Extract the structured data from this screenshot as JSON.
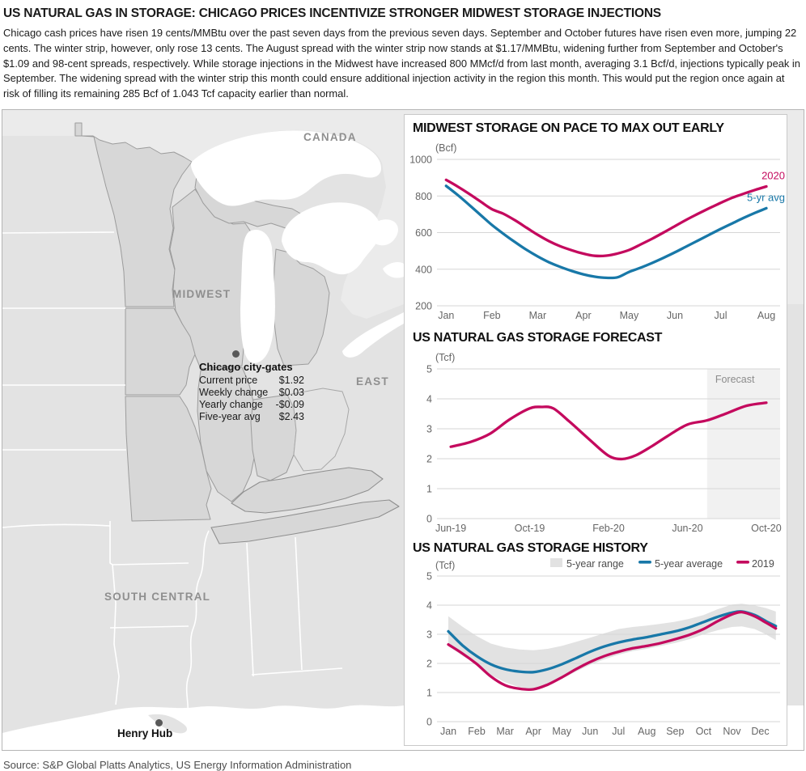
{
  "page": {
    "title": "US NATURAL GAS IN STORAGE: CHICAGO PRICES INCENTIVIZE STRONGER MIDWEST STORAGE INJECTIONS",
    "paragraph": "Chicago cash prices have risen 19 cents/MMBtu over the past seven days from the previous seven days. September and October futures have risen even more, jumping 22 cents. The winter strip, however, only rose 13 cents. The August spread with the winter strip now stands at $1.17/MMBtu, widening further from September and October's $1.09 and 98-cent spreads, respectively. While storage injections in the Midwest have increased 800 MMcf/d from last month, averaging 3.1 Bcf/d, injections typically peak in September. The widening spread with the winter strip this month could ensure additional injection activity in the region this month. This would put the region once again at risk of filling its remaining 285 Bcf of 1.043 Tcf capacity earlier than normal.",
    "source": "Source: S&P Global Platts Analytics, US Energy Information Administration"
  },
  "colors": {
    "pink": "#c40a5e",
    "blue": "#1878a8",
    "band": "#e2e2e2",
    "grid": "#d6d6d6",
    "forecast_bg": "#f1f1f1",
    "forecast_text": "#8c8c8c"
  },
  "map": {
    "labels": [
      {
        "text": "CANADA"
      },
      {
        "text": "MIDWEST"
      },
      {
        "text": "EAST"
      },
      {
        "text": "SOUTH CENTRAL"
      }
    ],
    "chicago": {
      "title": "Chicago city-gates",
      "rows": [
        {
          "label": "Current price",
          "value": "$1.92"
        },
        {
          "label": "Weekly change",
          "value": "$0.03"
        },
        {
          "label": "Yearly change",
          "value": "-$0.09"
        },
        {
          "label": "Five-year avg",
          "value": "$2.43"
        }
      ]
    },
    "henry_hub_label": "Henry Hub"
  },
  "chart_data": [
    {
      "type": "line",
      "title": "MIDWEST STORAGE ON PACE TO MAX OUT EARLY",
      "unit": "(Bcf)",
      "ylabel": "Bcf",
      "ylim": [
        200,
        1000
      ],
      "yticks": [
        1000,
        800,
        600,
        400,
        200
      ],
      "x_categories": [
        "Jan",
        "Feb",
        "Mar",
        "Apr",
        "May",
        "Jun",
        "Jul",
        "Aug"
      ],
      "legend_position": "line-end-labels",
      "grid": true,
      "series": [
        {
          "name": "2020",
          "color": "pink",
          "end_label": "2020",
          "x": [
            0,
            0.25,
            0.5,
            0.75,
            1,
            1.25,
            1.5,
            1.75,
            2,
            2.25,
            2.5,
            2.75,
            3,
            3.25,
            3.5,
            3.75,
            4,
            4.25,
            4.5,
            4.75,
            5,
            5.25,
            5.5,
            5.75,
            6,
            6.25,
            6.5,
            6.75,
            7
          ],
          "values": [
            888,
            852,
            812,
            770,
            728,
            703,
            668,
            628,
            588,
            553,
            525,
            503,
            485,
            473,
            474,
            486,
            505,
            535,
            566,
            600,
            635,
            670,
            702,
            733,
            762,
            790,
            812,
            833,
            852
          ]
        },
        {
          "name": "5-yr avg",
          "color": "blue",
          "end_label": "5-yr avg",
          "x": [
            0,
            0.25,
            0.5,
            0.75,
            1,
            1.25,
            1.5,
            1.75,
            2,
            2.25,
            2.5,
            2.75,
            3,
            3.25,
            3.5,
            3.75,
            4,
            4.25,
            4.5,
            4.75,
            5,
            5.25,
            5.5,
            5.75,
            6,
            6.25,
            6.5,
            6.75,
            7
          ],
          "values": [
            855,
            806,
            752,
            697,
            642,
            594,
            549,
            507,
            470,
            438,
            412,
            390,
            372,
            359,
            353,
            356,
            385,
            408,
            434,
            462,
            492,
            524,
            556,
            588,
            620,
            650,
            680,
            708,
            733
          ]
        }
      ]
    },
    {
      "type": "line",
      "title": "US NATURAL GAS STORAGE FORECAST",
      "unit": "(Tcf)",
      "ylabel": "Tcf",
      "ylim": [
        0,
        5
      ],
      "yticks": [
        5,
        4,
        3,
        2,
        1,
        0
      ],
      "xticks": [
        {
          "pos": 0,
          "label": "Jun-19"
        },
        {
          "pos": 4,
          "label": "Oct-19"
        },
        {
          "pos": 8,
          "label": "Feb-20"
        },
        {
          "pos": 12,
          "label": "Jun-20"
        },
        {
          "pos": 16,
          "label": "Oct-20"
        }
      ],
      "grid": true,
      "forecast": {
        "label": "Forecast",
        "start": 13
      },
      "series": [
        {
          "name": "US storage",
          "color": "pink",
          "x": [
            0,
            1,
            2,
            3,
            4,
            4.6,
            5.2,
            6,
            7,
            8,
            8.7,
            9.4,
            10.2,
            11,
            12,
            13,
            14,
            15,
            16
          ],
          "values": [
            2.4,
            2.56,
            2.84,
            3.32,
            3.68,
            3.73,
            3.68,
            3.25,
            2.66,
            2.1,
            1.99,
            2.12,
            2.42,
            2.76,
            3.14,
            3.28,
            3.52,
            3.77,
            3.87
          ]
        }
      ]
    },
    {
      "type": "line",
      "title": "US NATURAL GAS STORAGE HISTORY",
      "unit": "(Tcf)",
      "ylabel": "Tcf",
      "ylim": [
        0,
        5
      ],
      "yticks": [
        5,
        4,
        3,
        2,
        1,
        0
      ],
      "x_categories": [
        "Jan",
        "Feb",
        "Mar",
        "Apr",
        "May",
        "Jun",
        "Jul",
        "Aug",
        "Sep",
        "Oct",
        "Nov",
        "Dec"
      ],
      "grid": true,
      "legend_position": "top",
      "legend": [
        {
          "label": "5-year range",
          "swatch": "band"
        },
        {
          "label": "5-year average",
          "swatch": "blue"
        },
        {
          "label": "2019",
          "swatch": "pink"
        }
      ],
      "band": {
        "name": "5-year range",
        "x": [
          0,
          0.5,
          1,
          1.5,
          2,
          2.5,
          3,
          3.5,
          4,
          4.5,
          5,
          5.5,
          6,
          6.5,
          7,
          7.5,
          8,
          8.5,
          9,
          9.5,
          10,
          10.35,
          10.8,
          11.2,
          11.55
        ],
        "lower": [
          2.6,
          2.26,
          1.96,
          1.6,
          1.35,
          1.18,
          1.12,
          1.25,
          1.47,
          1.72,
          1.95,
          2.14,
          2.3,
          2.42,
          2.5,
          2.6,
          2.7,
          2.83,
          3.0,
          3.14,
          3.25,
          3.27,
          3.18,
          3.0,
          2.8
        ],
        "upper": [
          3.62,
          3.26,
          2.94,
          2.68,
          2.55,
          2.48,
          2.45,
          2.5,
          2.6,
          2.74,
          2.88,
          3.03,
          3.18,
          3.25,
          3.3,
          3.36,
          3.43,
          3.53,
          3.66,
          3.86,
          4.02,
          4.05,
          3.99,
          3.9,
          3.78
        ]
      },
      "series": [
        {
          "name": "5-year average",
          "color": "blue",
          "x": [
            0,
            0.5,
            1,
            1.5,
            2,
            2.5,
            3,
            3.5,
            4,
            4.5,
            5,
            5.5,
            6,
            6.5,
            7,
            7.5,
            8,
            8.5,
            9,
            9.5,
            10,
            10.35,
            10.8,
            11.2,
            11.55
          ],
          "values": [
            3.1,
            2.62,
            2.25,
            1.97,
            1.8,
            1.72,
            1.7,
            1.8,
            1.97,
            2.18,
            2.4,
            2.58,
            2.72,
            2.82,
            2.9,
            3.0,
            3.1,
            3.24,
            3.42,
            3.6,
            3.74,
            3.78,
            3.66,
            3.45,
            3.28
          ]
        },
        {
          "name": "2019",
          "color": "pink",
          "x": [
            0,
            0.5,
            1,
            1.5,
            2,
            2.5,
            3,
            3.5,
            4,
            4.5,
            5,
            5.5,
            6,
            6.5,
            7,
            7.5,
            8,
            8.5,
            9,
            9.5,
            10,
            10.35,
            10.8,
            11.2,
            11.55
          ],
          "values": [
            2.65,
            2.34,
            1.98,
            1.55,
            1.25,
            1.13,
            1.11,
            1.27,
            1.52,
            1.8,
            2.05,
            2.25,
            2.4,
            2.52,
            2.6,
            2.7,
            2.83,
            2.98,
            3.18,
            3.45,
            3.68,
            3.76,
            3.62,
            3.4,
            3.2
          ]
        }
      ]
    }
  ]
}
